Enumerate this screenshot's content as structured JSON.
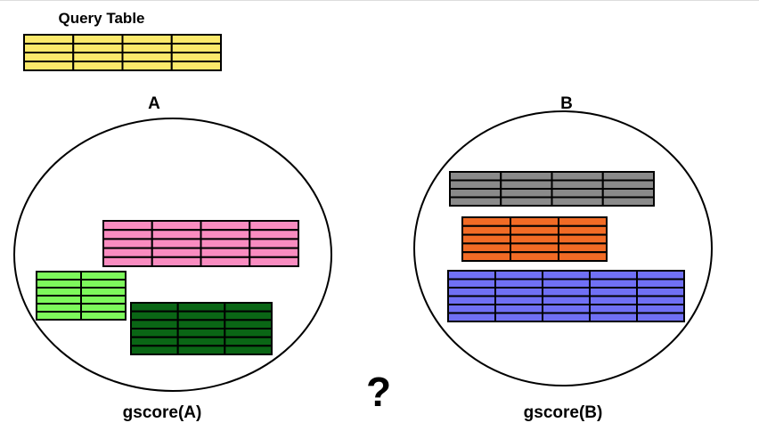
{
  "query_table": {
    "label": "Query Table",
    "cols": 4,
    "rows": 4,
    "color": "#fbe96b"
  },
  "set_a": {
    "label": "A",
    "score_label": "gscore(A)",
    "tables": [
      {
        "name": "pink-table",
        "cols": 4,
        "rows": 5,
        "color": "#f98cc0"
      },
      {
        "name": "light-green-table",
        "cols": 2,
        "rows": 6,
        "color": "#7df95b"
      },
      {
        "name": "dark-green-table",
        "cols": 3,
        "rows": 6,
        "color": "#0a6615"
      }
    ]
  },
  "set_b": {
    "label": "B",
    "score_label": "gscore(B)",
    "tables": [
      {
        "name": "gray-table",
        "cols": 4,
        "rows": 4,
        "color": "#8a8a8a"
      },
      {
        "name": "orange-table",
        "cols": 3,
        "rows": 5,
        "color": "#f26b25"
      },
      {
        "name": "blue-table",
        "cols": 5,
        "rows": 6,
        "color": "#7070f5"
      }
    ]
  },
  "question_mark": {
    "text": "?",
    "color": "#e8231f"
  }
}
